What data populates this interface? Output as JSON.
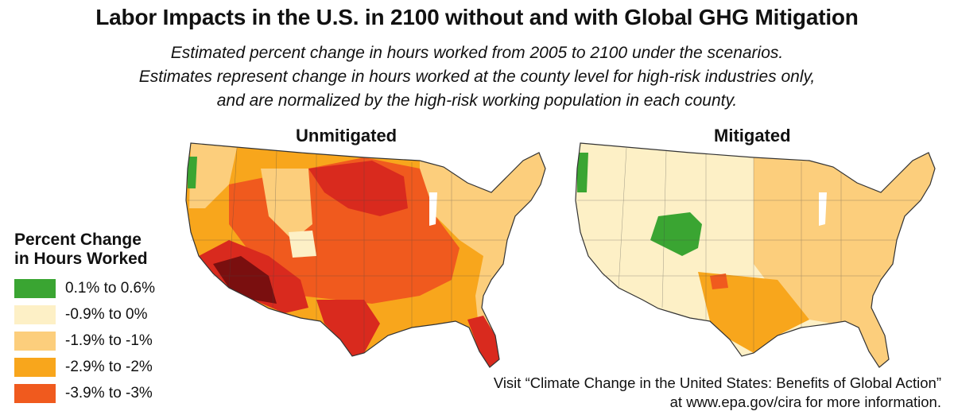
{
  "title": "Labor Impacts in the U.S. in 2100 without and with Global GHG Mitigation",
  "subtitle_lines": [
    "Estimated percent change in hours worked from 2005 to 2100 under the scenarios.",
    "Estimates represent change in hours worked at the county level for high-risk industries only,",
    "and are normalized by the high-risk working population in each county."
  ],
  "maps": {
    "unmitigated_title": "Unmitigated",
    "mitigated_title": "Mitigated"
  },
  "legend": {
    "title_line1": "Percent Change",
    "title_line2": "in Hours Worked",
    "items": [
      {
        "label": "0.1% to 0.6%",
        "color": "#3aa532"
      },
      {
        "label": "-0.9% to 0%",
        "color": "#fdf0c6"
      },
      {
        "label": "-1.9% to -1%",
        "color": "#fcce7c"
      },
      {
        "label": "-2.9% to -2%",
        "color": "#f8a61c"
      },
      {
        "label": "-3.9% to -3%",
        "color": "#f05a1e"
      }
    ]
  },
  "credit": {
    "line1": "Visit “Climate Change in the United States: Benefits of Global Action”",
    "line2": "at www.epa.gov/cira for more information."
  },
  "extra_colors": {
    "darker_red": "#d92a1e",
    "darkest_red": "#7a0f0f",
    "border": "#333333"
  }
}
